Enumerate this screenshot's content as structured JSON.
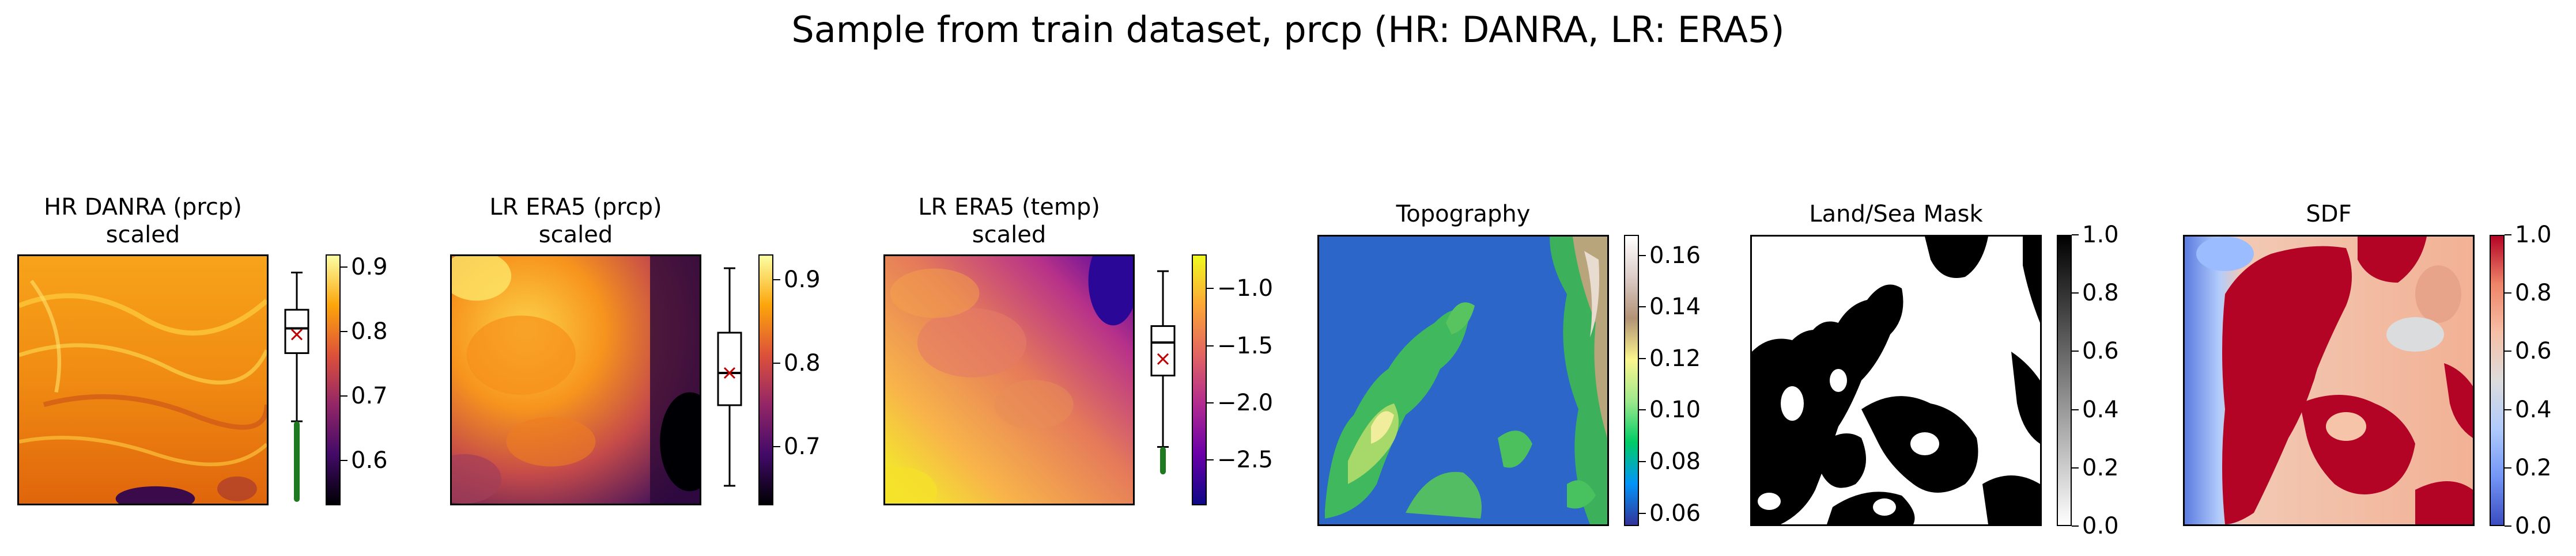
{
  "figure": {
    "title": "Sample from train dataset, prcp (HR: DANRA, LR: ERA5)"
  },
  "panels": [
    {
      "title_line1": "HR DANRA (prcp)",
      "title_line2": "scaled",
      "colormap": "inferno",
      "colorbar": {
        "range": [
          0.53,
          0.92
        ],
        "ticks": [
          "0.6",
          "0.7",
          "0.8",
          "0.9"
        ],
        "tick_values": [
          0.6,
          0.7,
          0.8,
          0.9
        ]
      },
      "boxplot": {
        "median": 0.81,
        "q1": 0.77,
        "q3": 0.84,
        "whisker_low": 0.66,
        "whisker_high": 0.9,
        "mean": 0.8,
        "outliers_low": [
          0.53,
          0.66
        ]
      }
    },
    {
      "title_line1": "LR ERA5 (prcp)",
      "title_line2": "scaled",
      "colormap": "inferno",
      "colorbar": {
        "range": [
          0.63,
          0.93
        ],
        "ticks": [
          "0.7",
          "0.8",
          "0.9"
        ],
        "tick_values": [
          0.7,
          0.8,
          0.9
        ]
      },
      "boxplot": {
        "median": 0.79,
        "q1": 0.75,
        "q3": 0.84,
        "whisker_low": 0.65,
        "whisker_high": 0.92,
        "mean": 0.79,
        "outliers_low": []
      }
    },
    {
      "title_line1": "LR ERA5 (temp)",
      "title_line2": "scaled",
      "colormap": "plasma",
      "colorbar": {
        "range": [
          -2.9,
          -0.7
        ],
        "ticks": [
          "−1.0",
          "−1.5",
          "−2.0",
          "−2.5"
        ],
        "tick_values": [
          -1.0,
          -1.5,
          -2.0,
          -2.5
        ]
      },
      "boxplot": {
        "median": -1.45,
        "q1": -1.75,
        "q3": -1.3,
        "whisker_low": -2.4,
        "whisker_high": -0.8,
        "mean": -1.6,
        "outliers_low": [
          -2.4,
          -2.65
        ]
      }
    },
    {
      "title_line1": "Topography",
      "colormap": "terrain",
      "colorbar": {
        "range": [
          0.055,
          0.168
        ],
        "ticks": [
          "0.16",
          "0.14",
          "0.12",
          "0.10",
          "0.08",
          "0.06"
        ],
        "tick_values": [
          0.16,
          0.14,
          0.12,
          0.1,
          0.08,
          0.06
        ]
      }
    },
    {
      "title_line1": "Land/Sea Mask",
      "colormap": "binary",
      "colorbar": {
        "range": [
          0.0,
          1.0
        ],
        "ticks": [
          "1.0",
          "0.8",
          "0.6",
          "0.4",
          "0.2",
          "0.0"
        ],
        "tick_values": [
          1.0,
          0.8,
          0.6,
          0.4,
          0.2,
          0.0
        ]
      }
    },
    {
      "title_line1": "SDF",
      "colormap": "coolwarm",
      "colorbar": {
        "range": [
          0.0,
          1.0
        ],
        "ticks": [
          "1.0",
          "0.8",
          "0.6",
          "0.4",
          "0.2",
          "0.0"
        ],
        "tick_values": [
          1.0,
          0.8,
          0.6,
          0.4,
          0.2,
          0.0
        ]
      }
    }
  ],
  "chart_data": {
    "type": "heatmap",
    "title": "Sample from train dataset, prcp (HR: DANRA, LR: ERA5)",
    "subplots": [
      {
        "title": "HR DANRA (prcp)\nscaled",
        "value_range": [
          0.53,
          0.92
        ],
        "colormap": "inferno"
      },
      {
        "title": "LR ERA5 (prcp)\nscaled",
        "value_range": [
          0.63,
          0.93
        ],
        "colormap": "inferno"
      },
      {
        "title": "LR ERA5 (temp)\nscaled",
        "value_range": [
          -2.9,
          -0.7
        ],
        "colormap": "plasma"
      },
      {
        "title": "Topography",
        "value_range": [
          0.055,
          0.168
        ],
        "colormap": "terrain"
      },
      {
        "title": "Land/Sea Mask",
        "value_range": [
          0.0,
          1.0
        ],
        "colormap": "binary"
      },
      {
        "title": "SDF",
        "value_range": [
          0.0,
          1.0
        ],
        "colormap": "coolwarm"
      }
    ],
    "grid": false
  }
}
